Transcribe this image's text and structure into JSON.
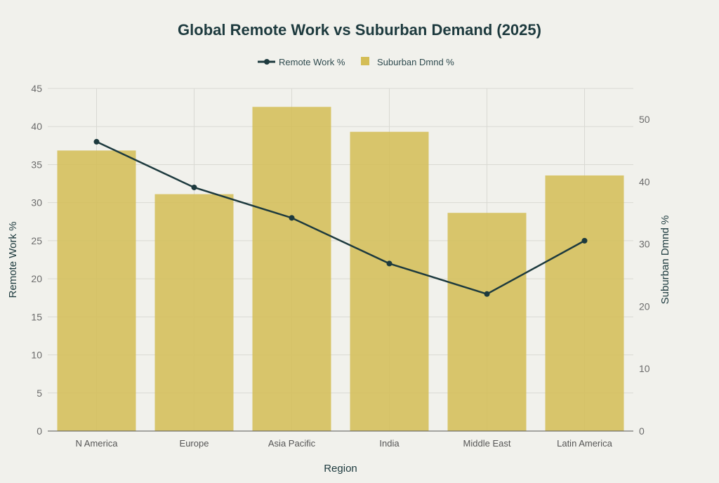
{
  "chart_data": {
    "type": "bar+line",
    "title": "Global Remote Work vs Suburban Demand (2025)",
    "xlabel": "Region",
    "ylabel_left": "Remote Work %",
    "ylabel_right": "Suburban Dmnd %",
    "categories": [
      "N America",
      "Europe",
      "Asia Pacific",
      "India",
      "Middle East",
      "Latin America"
    ],
    "series": [
      {
        "name": "Remote Work %",
        "type": "line",
        "axis": "left",
        "color": "#1d3a3e",
        "values": [
          38,
          32,
          28,
          22,
          18,
          25
        ]
      },
      {
        "name": "Suburban Dmnd %",
        "type": "bar",
        "axis": "right",
        "color": "#d4bd55",
        "values": [
          45,
          38,
          52,
          48,
          35,
          41
        ]
      }
    ],
    "ylim_left": [
      0,
      45
    ],
    "yticks_left": [
      0,
      5,
      10,
      15,
      20,
      25,
      30,
      35,
      40,
      45
    ],
    "ylim_right": [
      0,
      55
    ],
    "yticks_right": [
      0,
      10,
      20,
      30,
      40,
      50
    ],
    "legend": "top-center",
    "grid": true
  }
}
